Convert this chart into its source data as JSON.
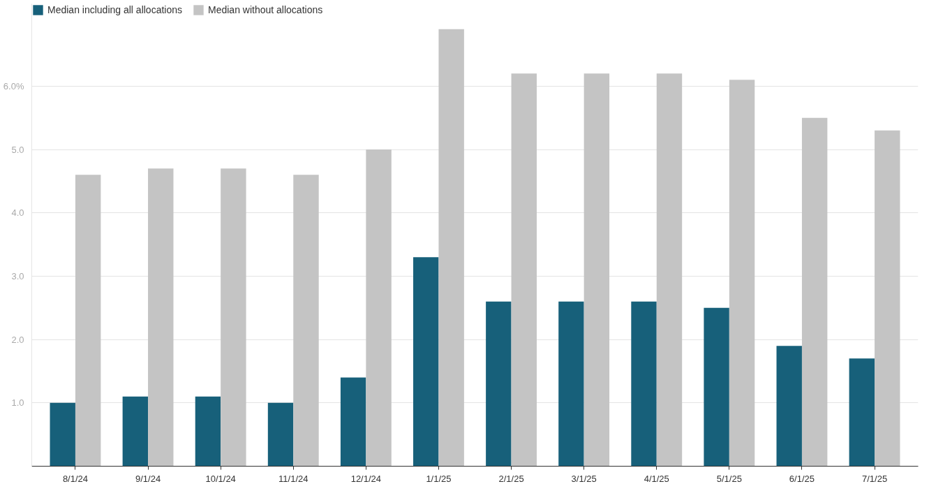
{
  "chart_data": {
    "type": "bar",
    "categories": [
      "8/1/24",
      "9/1/24",
      "10/1/24",
      "11/1/24",
      "12/1/24",
      "1/1/25",
      "2/1/25",
      "3/1/25",
      "4/1/25",
      "5/1/25",
      "6/1/25",
      "7/1/25"
    ],
    "series": [
      {
        "name": "Median including all allocations",
        "color": "#17607a",
        "values": [
          1.0,
          1.1,
          1.1,
          1.0,
          1.4,
          3.3,
          2.6,
          2.6,
          2.6,
          2.5,
          1.9,
          1.7
        ]
      },
      {
        "name": "Median without allocations",
        "color": "#c4c4c4",
        "values": [
          4.6,
          4.7,
          4.7,
          4.6,
          5.0,
          6.9,
          6.2,
          6.2,
          6.2,
          6.1,
          5.5,
          5.3
        ]
      }
    ],
    "ylim": [
      0,
      7.3
    ],
    "yticks": [
      {
        "value": 0,
        "label": null
      },
      {
        "value": 1,
        "label": "1.0"
      },
      {
        "value": 2,
        "label": "2.0"
      },
      {
        "value": 3,
        "label": "3.0"
      },
      {
        "value": 4,
        "label": "4.0"
      },
      {
        "value": 5,
        "label": "5.0"
      },
      {
        "value": 6,
        "label": "6.0%"
      }
    ],
    "grid": "y",
    "legend": "top left"
  }
}
